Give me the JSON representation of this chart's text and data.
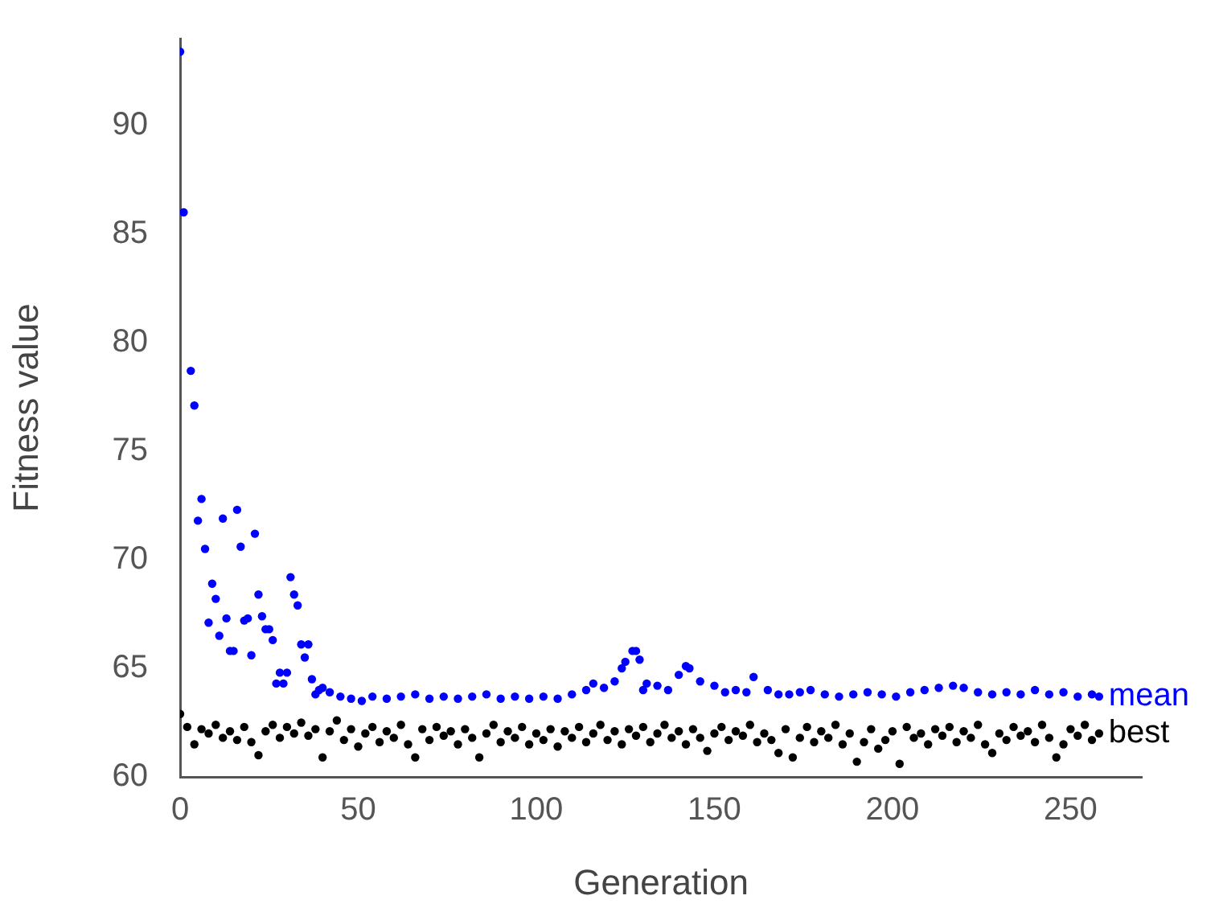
{
  "chart_data": {
    "type": "scatter",
    "xlabel": "Generation",
    "ylabel": "Fitness value",
    "xlim": [
      0,
      270
    ],
    "xticks": [
      0,
      50,
      100,
      150,
      200,
      250
    ],
    "ylim": [
      60,
      94
    ],
    "yticks": [
      60,
      65,
      70,
      75,
      80,
      85,
      90
    ],
    "grid": false,
    "legend": false,
    "marker": "circle",
    "series": [
      {
        "name": "mean",
        "color": "#0000ff",
        "x": [
          0,
          1,
          3,
          4,
          5,
          6,
          7,
          8,
          9,
          10,
          11,
          12,
          13,
          14,
          15,
          16,
          17,
          18,
          19,
          20,
          21,
          22,
          23,
          24,
          25,
          26,
          27,
          28,
          29,
          30,
          31,
          32,
          33,
          34,
          35,
          36,
          37,
          38,
          39,
          40,
          42,
          45,
          48,
          51,
          54,
          58,
          62,
          66,
          70,
          74,
          78,
          82,
          86,
          90,
          94,
          98,
          102,
          106,
          110,
          114,
          116,
          119,
          122,
          124,
          125,
          127,
          128,
          129,
          130,
          131,
          134,
          137,
          140,
          142,
          143,
          146,
          150,
          153,
          156,
          159,
          161,
          165,
          168,
          171,
          174,
          177,
          181,
          185,
          189,
          193,
          197,
          201,
          205,
          209,
          213,
          217,
          220,
          224,
          228,
          232,
          236,
          240,
          244,
          248,
          252,
          256,
          258
        ],
        "values": [
          93.4,
          86.0,
          78.7,
          77.1,
          71.8,
          72.8,
          70.5,
          67.1,
          68.9,
          68.2,
          66.5,
          71.9,
          67.3,
          65.8,
          65.8,
          72.3,
          70.6,
          67.2,
          67.3,
          65.6,
          71.2,
          68.4,
          67.4,
          66.8,
          66.8,
          66.3,
          64.3,
          64.8,
          64.3,
          64.8,
          69.2,
          68.4,
          67.9,
          66.1,
          65.5,
          66.1,
          64.5,
          63.8,
          64.0,
          64.1,
          63.9,
          63.7,
          63.6,
          63.5,
          63.7,
          63.6,
          63.7,
          63.8,
          63.6,
          63.7,
          63.6,
          63.7,
          63.8,
          63.6,
          63.7,
          63.6,
          63.7,
          63.6,
          63.8,
          64.0,
          64.3,
          64.1,
          64.4,
          65.0,
          65.3,
          65.8,
          65.8,
          65.4,
          64.0,
          64.3,
          64.2,
          64.0,
          64.7,
          65.1,
          65.0,
          64.4,
          64.2,
          63.9,
          64.0,
          63.9,
          64.6,
          64.0,
          63.8,
          63.8,
          63.9,
          64.0,
          63.8,
          63.7,
          63.8,
          63.9,
          63.8,
          63.7,
          63.9,
          64.0,
          64.1,
          64.2,
          64.1,
          63.9,
          63.8,
          63.9,
          63.8,
          64.0,
          63.8,
          63.9,
          63.7,
          63.8,
          63.7
        ]
      },
      {
        "name": "best",
        "color": "#000000",
        "x": [
          0,
          2,
          4,
          6,
          8,
          10,
          12,
          14,
          16,
          18,
          20,
          22,
          24,
          26,
          28,
          30,
          32,
          34,
          36,
          38,
          40,
          42,
          44,
          46,
          48,
          50,
          52,
          54,
          56,
          58,
          60,
          62,
          64,
          66,
          68,
          70,
          72,
          74,
          76,
          78,
          80,
          82,
          84,
          86,
          88,
          90,
          92,
          94,
          96,
          98,
          100,
          102,
          104,
          106,
          108,
          110,
          112,
          114,
          116,
          118,
          120,
          122,
          124,
          126,
          128,
          130,
          132,
          134,
          136,
          138,
          140,
          142,
          144,
          146,
          148,
          150,
          152,
          154,
          156,
          158,
          160,
          162,
          164,
          166,
          168,
          170,
          172,
          174,
          176,
          178,
          180,
          182,
          184,
          186,
          188,
          190,
          192,
          194,
          196,
          198,
          200,
          202,
          204,
          206,
          208,
          210,
          212,
          214,
          216,
          218,
          220,
          222,
          224,
          226,
          228,
          230,
          232,
          234,
          236,
          238,
          240,
          242,
          244,
          246,
          248,
          250,
          252,
          254,
          256,
          258
        ],
        "values": [
          62.9,
          62.3,
          61.5,
          62.2,
          62.0,
          62.4,
          61.8,
          62.1,
          61.7,
          62.3,
          61.6,
          61.0,
          62.1,
          62.4,
          61.8,
          62.3,
          62.0,
          62.5,
          61.9,
          62.2,
          60.9,
          62.1,
          62.6,
          61.7,
          62.2,
          61.4,
          62.0,
          62.3,
          61.6,
          62.1,
          61.8,
          62.4,
          61.5,
          60.9,
          62.2,
          61.7,
          62.3,
          61.9,
          62.1,
          61.5,
          62.2,
          61.8,
          60.9,
          62.0,
          62.4,
          61.6,
          62.1,
          61.8,
          62.3,
          61.5,
          62.0,
          61.7,
          62.2,
          61.4,
          62.1,
          61.8,
          62.3,
          61.6,
          62.0,
          62.4,
          61.7,
          62.1,
          61.5,
          62.2,
          61.9,
          62.3,
          61.6,
          62.0,
          62.4,
          61.8,
          62.1,
          61.5,
          62.2,
          61.8,
          61.2,
          62.0,
          62.3,
          61.7,
          62.1,
          61.9,
          62.4,
          61.6,
          62.0,
          61.7,
          61.1,
          62.2,
          60.9,
          61.8,
          62.3,
          61.6,
          62.1,
          61.8,
          62.4,
          61.5,
          62.0,
          60.7,
          61.6,
          62.2,
          61.3,
          61.7,
          62.1,
          60.6,
          62.3,
          61.8,
          62.0,
          61.5,
          62.2,
          61.9,
          62.3,
          61.6,
          62.1,
          61.8,
          62.4,
          61.5,
          61.1,
          62.0,
          61.7,
          62.3,
          61.9,
          62.1,
          61.6,
          62.4,
          61.8,
          60.9,
          61.5,
          62.2,
          61.9,
          62.4,
          61.7,
          62.0
        ]
      }
    ]
  }
}
